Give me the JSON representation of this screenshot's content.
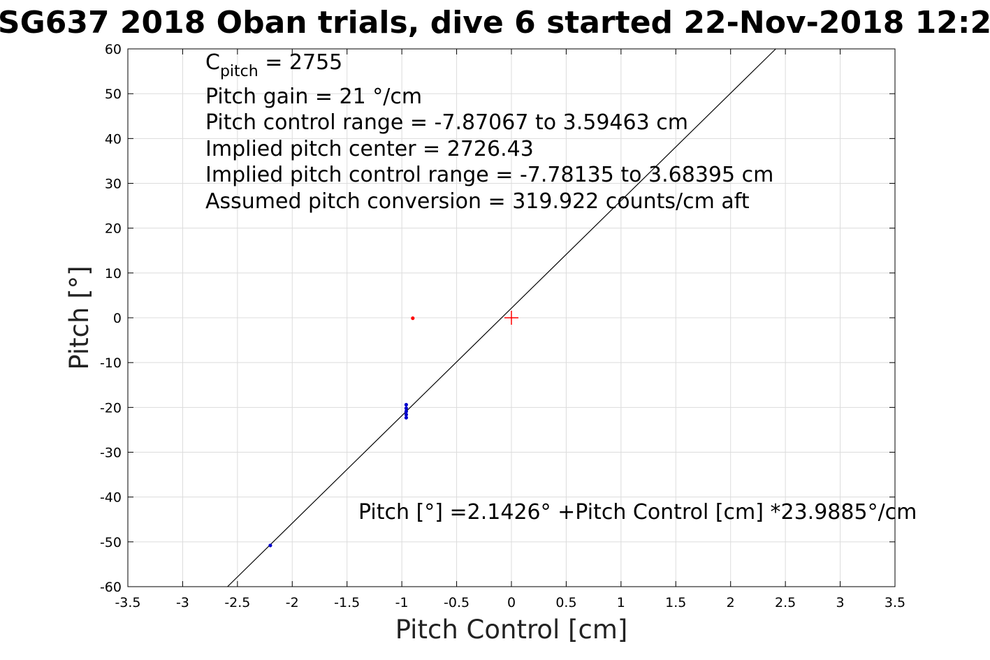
{
  "chart_data": {
    "type": "scatter",
    "title": "SG637 2018 Oban trials, dive 6 started 22-Nov-2018 12:2",
    "xlabel": "Pitch Control [cm]",
    "ylabel": "Pitch [°]",
    "xlim": [
      -3.5,
      3.5
    ],
    "ylim": [
      -60,
      60
    ],
    "grid": true,
    "x_ticks": [
      "-3.5",
      "-3",
      "-2.5",
      "-2",
      "-1.5",
      "-1",
      "-0.5",
      "0",
      "0.5",
      "1",
      "1.5",
      "2",
      "2.5",
      "3",
      "3.5"
    ],
    "y_ticks": [
      "60",
      "50",
      "40",
      "30",
      "20",
      "10",
      "0",
      "-10",
      "-20",
      "-30",
      "-40",
      "-50",
      "-60"
    ],
    "annotations": {
      "cpitch_main": "C",
      "cpitch_sub": "pitch",
      "cpitch_value": " = 2755",
      "line2": "Pitch gain = 21 °/cm",
      "line3": "Pitch control range = -7.87067 to 3.59463 cm",
      "line4": "Implied pitch center = 2726.43",
      "line5": "Implied pitch control range = -7.78135 to 3.68395 cm",
      "line6": "Assumed pitch conversion = 319.922 counts/cm aft",
      "fit_equation": "Pitch [°] =2.1426° +Pitch Control [cm] *23.9885°/cm"
    },
    "series": [
      {
        "color": "#0000cc",
        "marker": "point",
        "points": [
          {
            "x": -0.96,
            "y": -19.4
          },
          {
            "x": -0.96,
            "y": -20.2
          },
          {
            "x": -0.96,
            "y": -20.9
          },
          {
            "x": -0.96,
            "y": -21.6
          },
          {
            "x": -0.96,
            "y": -22.3
          },
          {
            "x": -2.2,
            "y": -50.8
          }
        ]
      },
      {
        "color": "#ff0000",
        "marker": "point",
        "points": [
          {
            "x": -0.9,
            "y": -0.1
          }
        ]
      },
      {
        "color": "#ff0000",
        "marker": "plus",
        "points": [
          {
            "x": 0.0,
            "y": 0.0
          }
        ]
      }
    ],
    "fit_line": {
      "intercept": 2.1426,
      "slope": 23.9885,
      "color": "#000000"
    }
  }
}
